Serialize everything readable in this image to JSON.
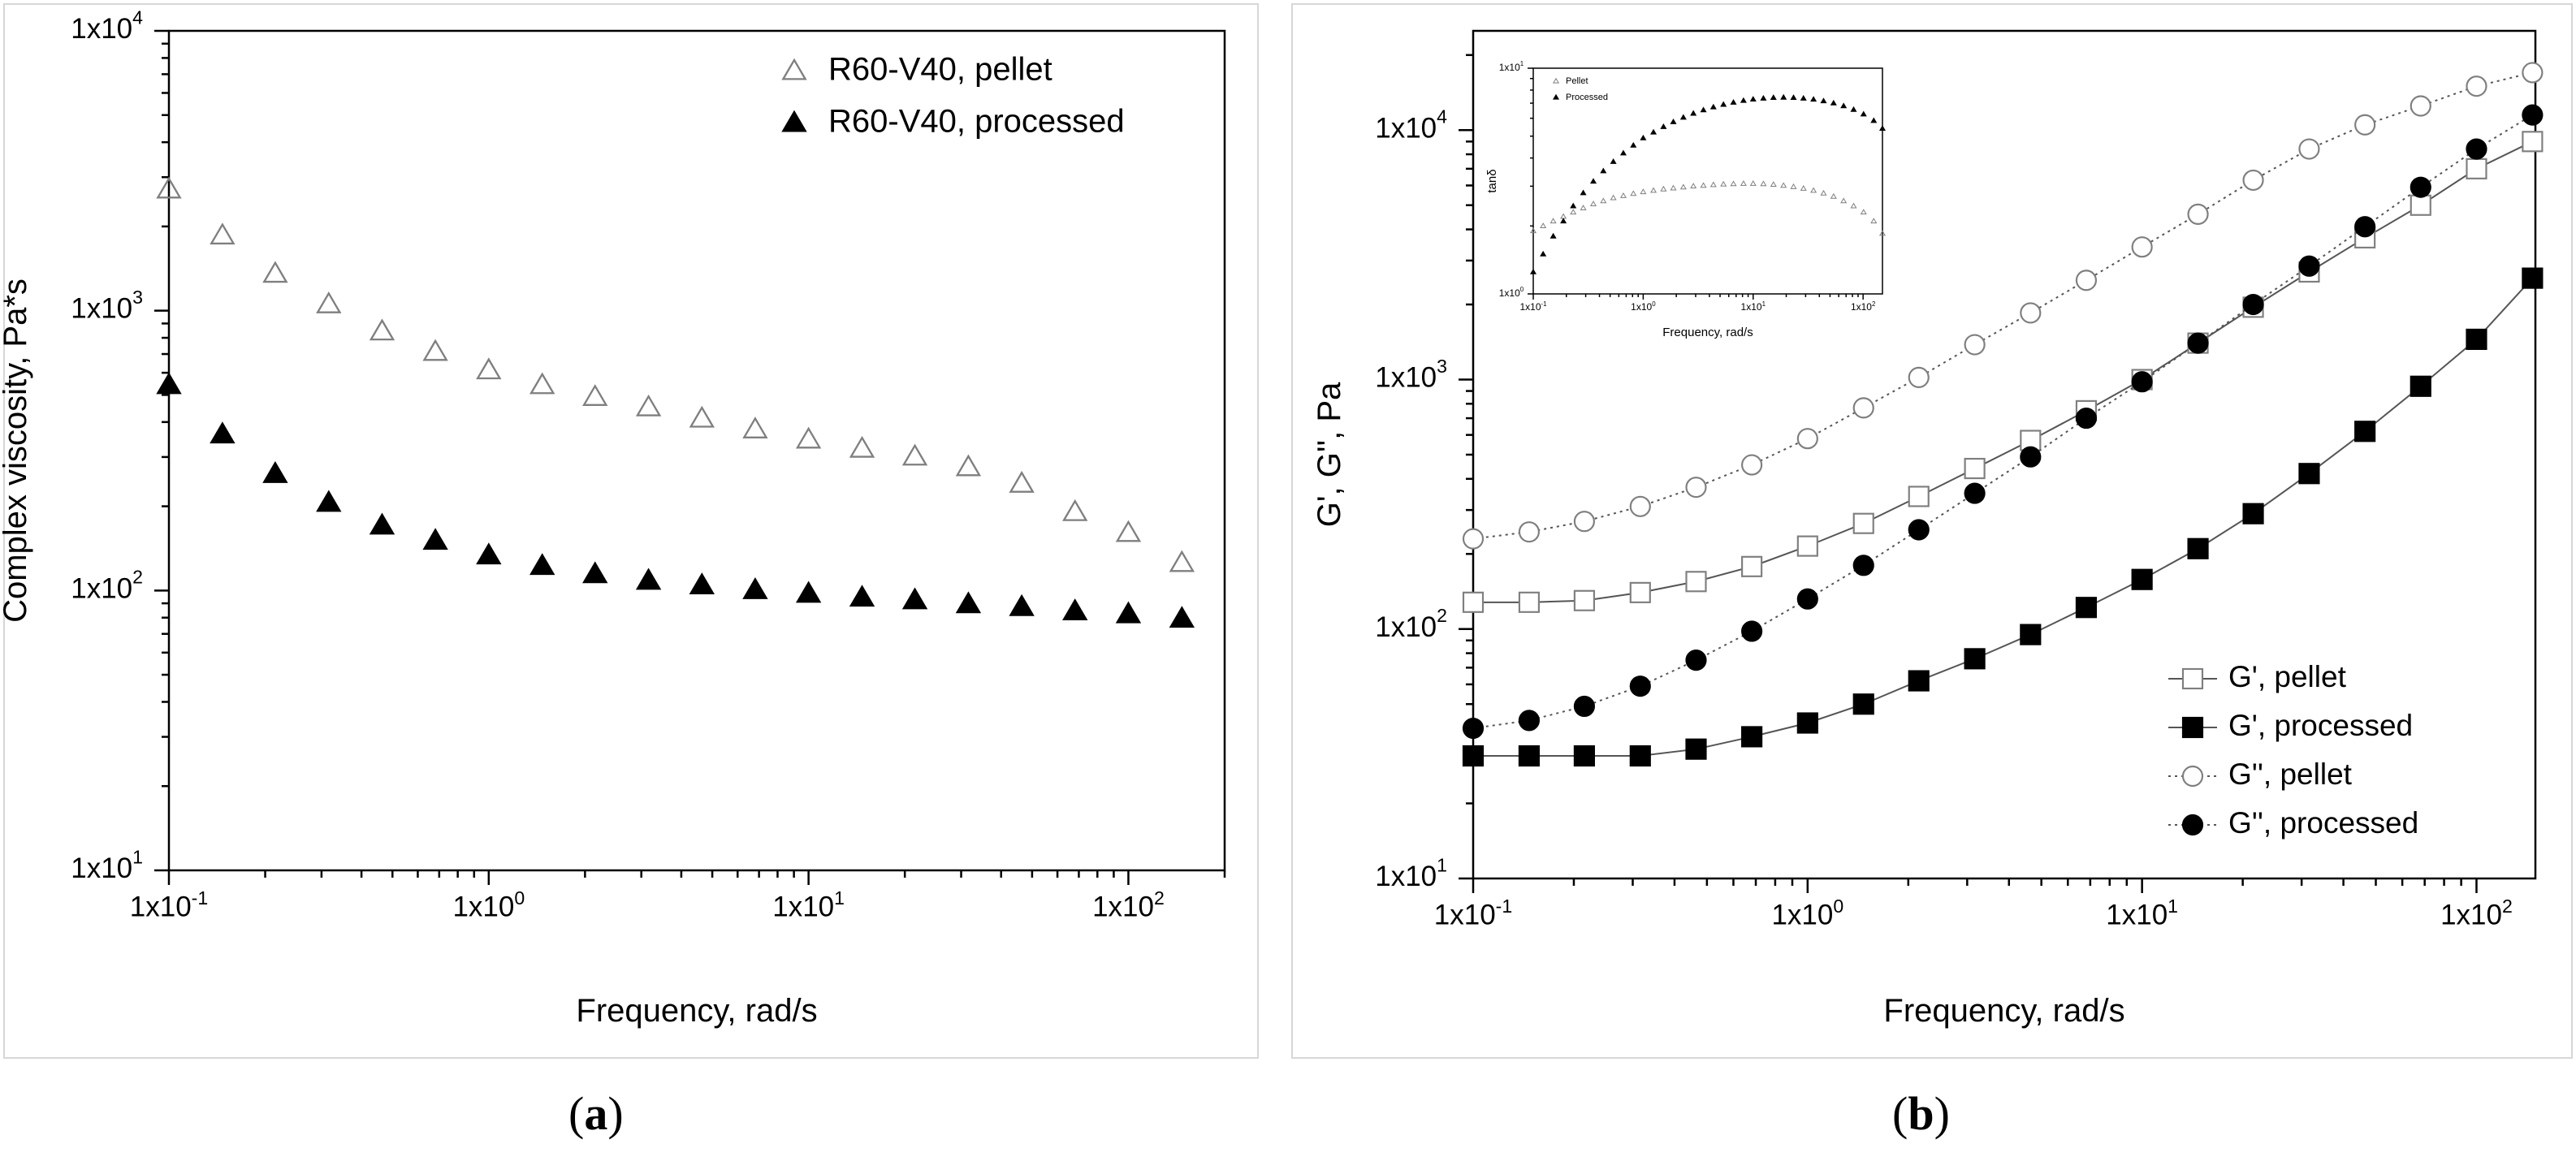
{
  "colors": {
    "axis": "#000000",
    "marker_open": "#7f7f7f",
    "marker_filled": "#000000",
    "frame": "#d7d7d7"
  },
  "chart_data": [
    {
      "id": "a",
      "type": "scatter",
      "scale": "log-log",
      "panel_label_open": "(",
      "panel_label_letter": "a",
      "panel_label_close": ")",
      "xlabel": "Frequency, rad/s",
      "ylabel": "Complex viscosity, Pa*s",
      "xlim": [
        0.1,
        200
      ],
      "ylim": [
        10,
        10000
      ],
      "xticks": [
        {
          "value": 0.1,
          "label": "1x10",
          "exp": "-1"
        },
        {
          "value": 1,
          "label": "1x10",
          "exp": "0"
        },
        {
          "value": 10,
          "label": "1x10",
          "exp": "1"
        },
        {
          "value": 100,
          "label": "1x10",
          "exp": "2"
        }
      ],
      "yticks": [
        {
          "value": 10,
          "label": "1x10",
          "exp": "1"
        },
        {
          "value": 100,
          "label": "1x10",
          "exp": "2"
        },
        {
          "value": 1000,
          "label": "1x10",
          "exp": "3"
        },
        {
          "value": 10000,
          "label": "1x10",
          "exp": "4"
        }
      ],
      "legend_position": "top-right",
      "series": [
        {
          "name": "R60-V40, pellet",
          "marker": "triangle-open",
          "x": [
            0.1,
            0.147,
            0.215,
            0.316,
            0.464,
            0.681,
            1,
            1.47,
            2.15,
            3.16,
            4.64,
            6.81,
            10,
            14.7,
            21.5,
            31.6,
            46.4,
            68.1,
            100,
            147
          ],
          "y": [
            2700,
            1850,
            1350,
            1050,
            840,
            710,
            610,
            540,
            490,
            450,
            410,
            375,
            345,
            320,
            300,
            275,
            240,
            190,
            160,
            125
          ]
        },
        {
          "name": "R60-V40, processed",
          "marker": "triangle-filled",
          "x": [
            0.1,
            0.147,
            0.215,
            0.316,
            0.464,
            0.681,
            1,
            1.47,
            2.15,
            3.16,
            4.64,
            6.81,
            10,
            14.7,
            21.5,
            31.6,
            46.4,
            68.1,
            100,
            147
          ],
          "y": [
            540,
            360,
            260,
            205,
            170,
            150,
            133,
            122,
            114,
            108,
            104,
            100,
            97,
            94,
            92,
            89,
            87,
            84,
            82,
            79
          ]
        }
      ]
    },
    {
      "id": "b",
      "type": "line",
      "scale": "log-log",
      "panel_label_open": "(",
      "panel_label_letter": "b",
      "panel_label_close": ")",
      "xlabel": "Frequency, rad/s",
      "ylabel": "G', G'', Pa",
      "xlim": [
        0.1,
        150
      ],
      "ylim": [
        10,
        25000
      ],
      "xticks": [
        {
          "value": 0.1,
          "label": "1x10",
          "exp": "-1"
        },
        {
          "value": 1,
          "label": "1x10",
          "exp": "0"
        },
        {
          "value": 10,
          "label": "1x10",
          "exp": "1"
        },
        {
          "value": 100,
          "label": "1x10",
          "exp": "2"
        }
      ],
      "yticks": [
        {
          "value": 10,
          "label": "1x10",
          "exp": "1"
        },
        {
          "value": 100,
          "label": "1x10",
          "exp": "2"
        },
        {
          "value": 1000,
          "label": "1x10",
          "exp": "3"
        },
        {
          "value": 10000,
          "label": "1x10",
          "exp": "4"
        }
      ],
      "legend_position": "bottom-right",
      "series": [
        {
          "name": "G', pellet",
          "marker": "square-open",
          "line": "solid",
          "x": [
            0.1,
            0.147,
            0.215,
            0.316,
            0.464,
            0.681,
            1,
            1.47,
            2.15,
            3.16,
            4.64,
            6.81,
            10,
            14.7,
            21.5,
            31.6,
            46.4,
            68.1,
            100,
            147
          ],
          "y": [
            128,
            128,
            130,
            140,
            155,
            178,
            215,
            265,
            340,
            440,
            570,
            750,
            1000,
            1400,
            1950,
            2700,
            3700,
            5000,
            7000,
            9000
          ]
        },
        {
          "name": "G', processed",
          "marker": "square-filled",
          "line": "solid",
          "x": [
            0.1,
            0.147,
            0.215,
            0.316,
            0.464,
            0.681,
            1,
            1.47,
            2.15,
            3.16,
            4.64,
            6.81,
            10,
            14.7,
            21.5,
            31.6,
            46.4,
            68.1,
            100,
            147
          ],
          "y": [
            31,
            31,
            31,
            31,
            33,
            37,
            42,
            50,
            62,
            76,
            95,
            122,
            158,
            210,
            290,
            420,
            620,
            940,
            1450,
            2550
          ]
        },
        {
          "name": "G'', pellet",
          "marker": "circle-open",
          "line": "dotted",
          "x": [
            0.1,
            0.147,
            0.215,
            0.316,
            0.464,
            0.681,
            1,
            1.47,
            2.15,
            3.16,
            4.64,
            6.81,
            10,
            14.7,
            21.5,
            31.6,
            46.4,
            68.1,
            100,
            147
          ],
          "y": [
            230,
            245,
            270,
            310,
            370,
            455,
            580,
            770,
            1020,
            1380,
            1850,
            2500,
            3400,
            4600,
            6300,
            8400,
            10500,
            12500,
            15000,
            17000
          ]
        },
        {
          "name": "G'', processed",
          "marker": "circle-filled",
          "line": "dotted",
          "x": [
            0.1,
            0.147,
            0.215,
            0.316,
            0.464,
            0.681,
            1,
            1.47,
            2.15,
            3.16,
            4.64,
            6.81,
            10,
            14.7,
            21.5,
            31.6,
            46.4,
            68.1,
            100,
            147
          ],
          "y": [
            40,
            43,
            49,
            59,
            75,
            98,
            132,
            180,
            250,
            350,
            490,
            700,
            980,
            1400,
            2000,
            2850,
            4100,
            5900,
            8400,
            11500
          ]
        }
      ],
      "inset": {
        "type": "scatter",
        "scale": "log-log",
        "xlabel": "Frequency, rad/s",
        "ylabel": "tanδ",
        "xlim": [
          0.1,
          150
        ],
        "ylim": [
          1,
          10
        ],
        "xticks": [
          {
            "value": 0.1,
            "label": "1x10",
            "exp": "-1"
          },
          {
            "value": 1,
            "label": "1x10",
            "exp": "0"
          },
          {
            "value": 10,
            "label": "1x10",
            "exp": "1"
          },
          {
            "value": 100,
            "label": "1x10",
            "exp": "2"
          }
        ],
        "yticks": [
          {
            "value": 1,
            "label": "1x10",
            "exp": "0"
          },
          {
            "value": 10,
            "label": "1x10",
            "exp": "1"
          }
        ],
        "legend_position": "top-left",
        "series": [
          {
            "name": "Pellet",
            "marker": "triangle-open",
            "x": [
              0.1,
              0.123,
              0.152,
              0.188,
              0.231,
              0.285,
              0.352,
              0.434,
              0.535,
              0.66,
              0.814,
              1,
              1.24,
              1.53,
              1.88,
              2.32,
              2.86,
              3.53,
              4.35,
              5.37,
              6.62,
              8.17,
              10,
              12.4,
              15.3,
              18.9,
              23.3,
              28.7,
              35.4,
              43.7,
              53.9,
              66.5,
              82,
              101,
              125,
              150
            ],
            "y": [
              1.9,
              2.0,
              2.1,
              2.2,
              2.3,
              2.4,
              2.5,
              2.58,
              2.66,
              2.72,
              2.78,
              2.83,
              2.87,
              2.91,
              2.94,
              2.97,
              3.0,
              3.02,
              3.04,
              3.06,
              3.07,
              3.08,
              3.08,
              3.07,
              3.05,
              3.02,
              2.98,
              2.93,
              2.87,
              2.79,
              2.7,
              2.58,
              2.45,
              2.3,
              2.1,
              1.85
            ]
          },
          {
            "name": "Processed",
            "marker": "triangle-filled",
            "x": [
              0.1,
              0.123,
              0.152,
              0.188,
              0.231,
              0.285,
              0.352,
              0.434,
              0.535,
              0.66,
              0.814,
              1,
              1.24,
              1.53,
              1.88,
              2.32,
              2.86,
              3.53,
              4.35,
              5.37,
              6.62,
              8.17,
              10,
              12.4,
              15.3,
              18.9,
              23.3,
              28.7,
              35.4,
              43.7,
              53.9,
              66.5,
              82,
              101,
              125,
              150
            ],
            "y": [
              1.25,
              1.5,
              1.8,
              2.1,
              2.45,
              2.8,
              3.15,
              3.5,
              3.85,
              4.2,
              4.55,
              4.9,
              5.2,
              5.5,
              5.78,
              6.05,
              6.3,
              6.52,
              6.72,
              6.9,
              7.05,
              7.18,
              7.28,
              7.35,
              7.4,
              7.42,
              7.4,
              7.35,
              7.27,
              7.15,
              7.0,
              6.8,
              6.55,
              6.25,
              5.85,
              5.4
            ]
          }
        ]
      }
    }
  ]
}
